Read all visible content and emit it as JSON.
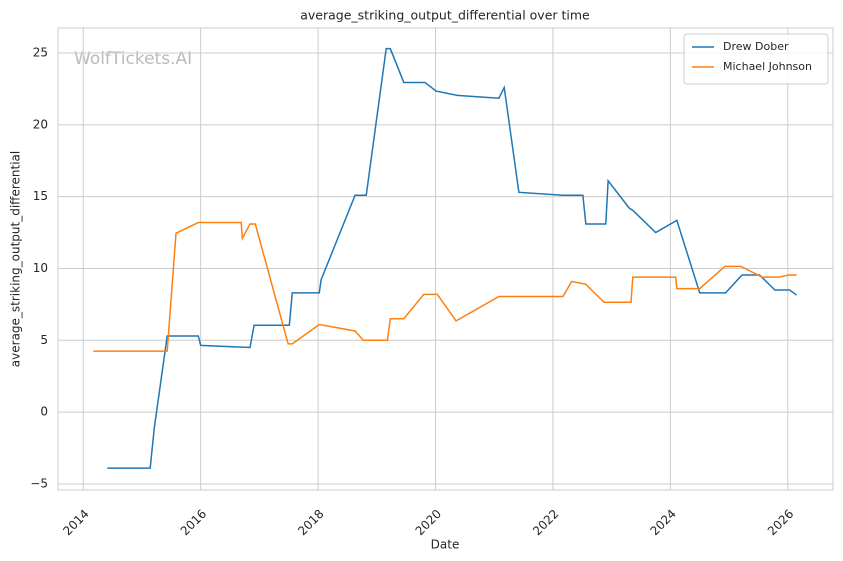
{
  "chart_data": {
    "type": "line",
    "title": "average_striking_output_differential over time",
    "xlabel": "Date",
    "ylabel": "average_striking_output_differential",
    "watermark": "WolfTickets.AI",
    "xlim": [
      2013.57,
      2026.77
    ],
    "ylim": [
      -5.42,
      26.74
    ],
    "xticks": [
      2014,
      2016,
      2018,
      2020,
      2022,
      2024,
      2026
    ],
    "yticks": [
      {
        "value": -5,
        "label": "−5"
      },
      0,
      5,
      10,
      15,
      20,
      25
    ],
    "grid": true,
    "legend": "upper right",
    "series": [
      {
        "name": "Drew Dober",
        "color": "#1f77b4",
        "x": [
          2014.41,
          2015.14,
          2015.21,
          2015.43,
          2015.96,
          2016.0,
          2016.84,
          2016.91,
          2017.51,
          2017.56,
          2018.02,
          2018.05,
          2018.63,
          2018.82,
          2019.16,
          2019.23,
          2019.46,
          2019.82,
          2020.01,
          2020.37,
          2021.08,
          2021.17,
          2021.42,
          2022.17,
          2022.51,
          2022.56,
          2022.9,
          2022.94,
          2023.3,
          2023.36,
          2023.75,
          2024.11,
          2024.5,
          2024.94,
          2025.22,
          2025.52,
          2025.78,
          2026.03,
          2026.15
        ],
        "values": [
          -3.9,
          -3.9,
          -1.1,
          5.3,
          5.3,
          4.65,
          4.5,
          6.05,
          6.05,
          8.3,
          8.3,
          9.2,
          15.1,
          15.1,
          25.3,
          25.3,
          22.95,
          22.95,
          22.35,
          22.05,
          21.85,
          22.6,
          15.3,
          15.1,
          15.1,
          13.1,
          13.1,
          16.1,
          14.2,
          14.05,
          12.5,
          13.35,
          8.3,
          8.3,
          9.55,
          9.55,
          8.5,
          8.5,
          8.15
        ]
      },
      {
        "name": "Michael Johnson",
        "color": "#ff7f0e",
        "x": [
          2014.17,
          2015.43,
          2015.58,
          2015.96,
          2016.69,
          2016.71,
          2016.84,
          2016.93,
          2017.49,
          2017.56,
          2018.02,
          2018.63,
          2018.77,
          2019.18,
          2019.23,
          2019.46,
          2019.8,
          2020.03,
          2020.35,
          2021.08,
          2022.17,
          2022.32,
          2022.56,
          2022.87,
          2023.33,
          2023.36,
          2024.09,
          2024.11,
          2024.5,
          2024.93,
          2025.2,
          2025.56,
          2025.85,
          2026.02,
          2026.15
        ],
        "values": [
          4.25,
          4.25,
          12.45,
          13.2,
          13.2,
          12.1,
          13.1,
          13.1,
          4.75,
          4.75,
          6.1,
          5.65,
          5.0,
          5.0,
          6.5,
          6.5,
          8.2,
          8.2,
          6.35,
          8.05,
          8.05,
          9.1,
          8.9,
          7.65,
          7.65,
          9.4,
          9.4,
          8.6,
          8.6,
          10.15,
          10.15,
          9.4,
          9.4,
          9.55,
          9.55
        ]
      }
    ]
  }
}
